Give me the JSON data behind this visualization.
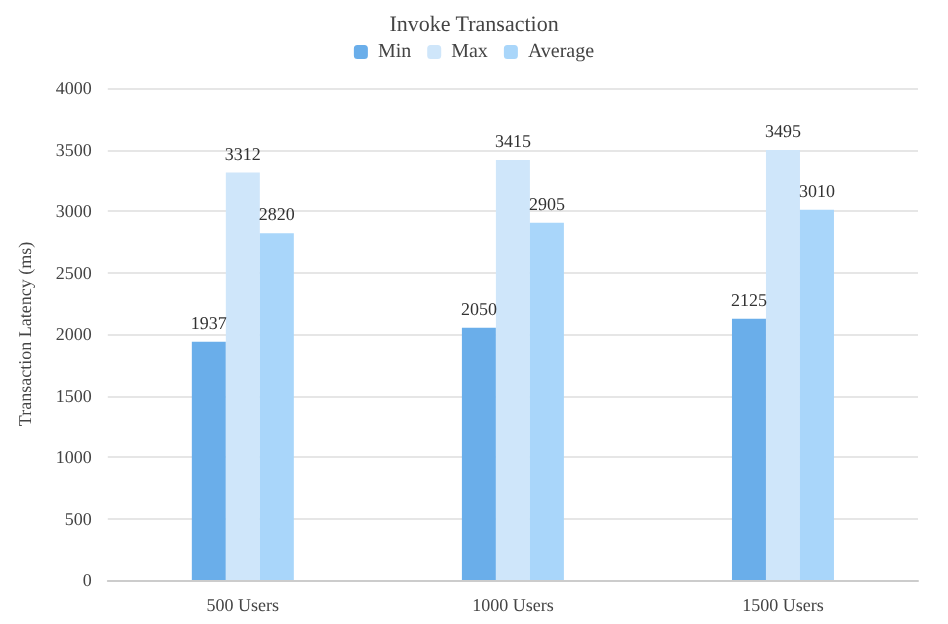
{
  "chart_data": {
    "type": "bar",
    "title": "Invoke Transaction",
    "ylabel": "Transaction Latency (ms)",
    "categories": [
      "500 Users",
      "1000 Users",
      "1500 Users"
    ],
    "series": [
      {
        "name": "Min",
        "color": "#6aaeea",
        "values": [
          1937,
          2050,
          2125
        ]
      },
      {
        "name": "Max",
        "color": "#cfe6fa",
        "values": [
          3312,
          3415,
          3495
        ]
      },
      {
        "name": "Average",
        "color": "#a9d6fa",
        "values": [
          2820,
          2905,
          3010
        ]
      }
    ],
    "ylim": [
      0,
      4000
    ],
    "yticks": [
      0,
      500,
      1000,
      1500,
      2000,
      2500,
      3000,
      3500,
      4000
    ],
    "grid": "y",
    "legend": "top",
    "data_labels": true
  }
}
